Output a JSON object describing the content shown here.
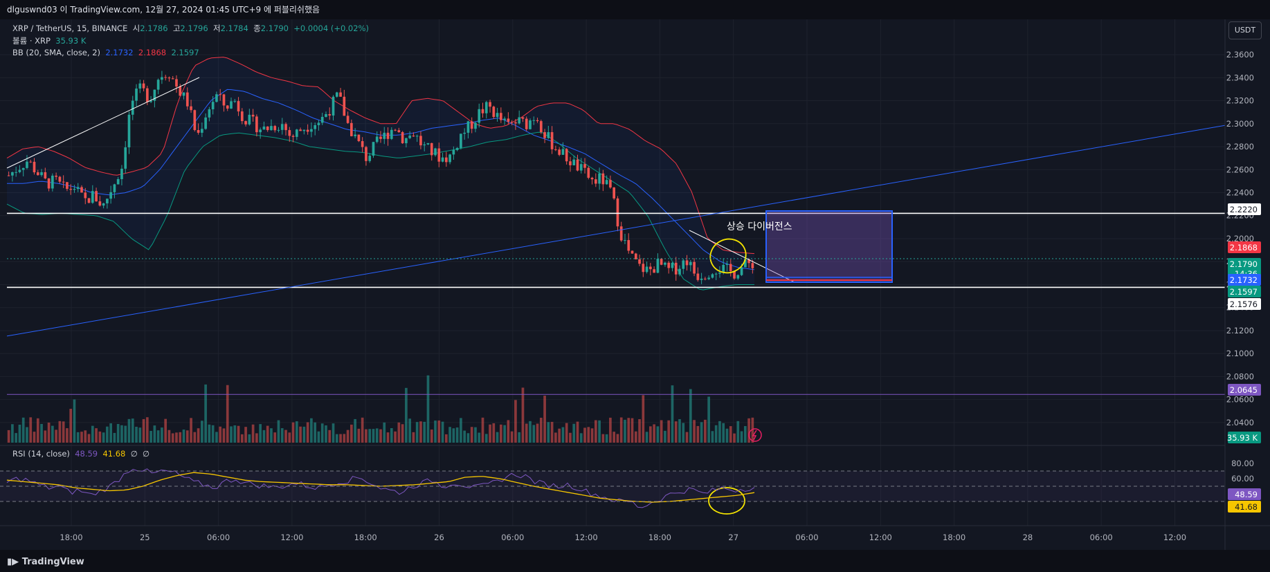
{
  "header": {
    "title": "dlguswnd03 이 TradingView.com, 12월 27, 2024 01:45 UTC+9 에 퍼블리쉬했음"
  },
  "legend": {
    "symbol": "XRP / TetherUS, 15, BINANCE",
    "o_label": "시",
    "o": "2.1786",
    "h_label": "고",
    "h": "2.1796",
    "l_label": "저",
    "l": "2.1784",
    "c_label": "종",
    "c": "2.1790",
    "change": "+0.0004 (+0.02%)",
    "vol_label": "볼륨 · XRP",
    "vol": "35.93 K",
    "bb_label": "BB (20, SMA, close, 2)",
    "bb_basis": "2.1732",
    "bb_upper": "2.1868",
    "bb_lower": "2.1597"
  },
  "rsi_legend": {
    "label": "RSI (14, close)",
    "rsi": "48.59",
    "ma": "41.68",
    "e1": "∅",
    "e2": "∅"
  },
  "currency_button": "USDT",
  "annotation_text": "상승 다이버전스",
  "brand": "TradingView",
  "colors": {
    "background": "#131722",
    "up": "#26a69a",
    "down": "#ef5350",
    "bb_basis": "#2962ff",
    "bb_upper": "#f23645",
    "bb_lower": "#089981",
    "rsi": "#7e57c2",
    "rsi_ma": "#f7c600",
    "trendline": "#2962ff",
    "horizontal": "#ffffff",
    "box": "#2962ff"
  },
  "chart_data": {
    "type": "candlestick",
    "title": "XRP / TetherUS, 15, BINANCE",
    "x_ticks": [
      "18:00",
      "25",
      "06:00",
      "12:00",
      "18:00",
      "26",
      "06:00",
      "12:00",
      "18:00",
      "27",
      "06:00",
      "12:00",
      "18:00",
      "28",
      "06:00",
      "12:00"
    ],
    "y_ticks": [
      2.36,
      2.34,
      2.32,
      2.3,
      2.28,
      2.26,
      2.24,
      2.22,
      2.2,
      2.18,
      2.16,
      2.14,
      2.12,
      2.1,
      2.08,
      2.06,
      2.04
    ],
    "y_range": [
      2.0225,
      2.3835
    ],
    "price_labels": [
      {
        "value": "2.2220",
        "kind": "horizontal-line"
      },
      {
        "value": "2.1868",
        "kind": "bb-upper"
      },
      {
        "value": "2.1790",
        "kind": "last-price",
        "countdown": "14:36"
      },
      {
        "value": "2.1732",
        "kind": "bb-basis"
      },
      {
        "value": "2.1597",
        "kind": "bb-lower"
      },
      {
        "value": "2.1576",
        "kind": "horizontal-line"
      },
      {
        "value": "2.0645",
        "kind": "horizontal-line"
      },
      {
        "value": "35.93 K",
        "kind": "volume"
      }
    ],
    "horizontal_lines": [
      2.222,
      2.1576,
      2.0645
    ],
    "price_path": [
      2.255,
      2.262,
      2.268,
      2.258,
      2.248,
      2.25,
      2.242,
      2.245,
      2.232,
      2.238,
      2.228,
      2.245,
      2.262,
      2.318,
      2.33,
      2.322,
      2.342,
      2.345,
      2.33,
      2.318,
      2.288,
      2.31,
      2.325,
      2.315,
      2.32,
      2.305,
      2.3,
      2.295,
      2.298,
      2.3,
      2.288,
      2.295,
      2.3,
      2.302,
      2.312,
      2.325,
      2.3,
      2.285,
      2.27,
      2.282,
      2.29,
      2.298,
      2.286,
      2.292,
      2.28,
      2.275,
      2.27,
      2.272,
      2.29,
      2.298,
      2.31,
      2.315,
      2.305,
      2.298,
      2.302,
      2.3,
      2.308,
      2.29,
      2.28,
      2.272,
      2.265,
      2.258,
      2.25,
      2.252,
      2.24,
      2.205,
      2.185,
      2.175,
      2.172,
      2.178,
      2.172,
      2.175,
      2.182,
      2.168,
      2.17,
      2.175,
      2.173,
      2.17,
      2.176,
      2.179
    ],
    "bb_upper_path": [
      2.27,
      2.278,
      2.28,
      2.276,
      2.27,
      2.262,
      2.258,
      2.255,
      2.258,
      2.262,
      2.275,
      2.32,
      2.35,
      2.357,
      2.358,
      2.352,
      2.345,
      2.34,
      2.337,
      2.333,
      2.332,
      2.32,
      2.312,
      2.305,
      2.3,
      2.3,
      2.32,
      2.322,
      2.32,
      2.31,
      2.3,
      2.296,
      2.298,
      2.305,
      2.315,
      2.318,
      2.318,
      2.312,
      2.3,
      2.3,
      2.295,
      2.285,
      2.278,
      2.265,
      2.24,
      2.2,
      2.19,
      2.188,
      2.187
    ],
    "bb_basis_path": [
      2.248,
      2.248,
      2.25,
      2.248,
      2.245,
      2.24,
      2.238,
      2.24,
      2.245,
      2.26,
      2.28,
      2.3,
      2.32,
      2.33,
      2.328,
      2.322,
      2.318,
      2.312,
      2.305,
      2.3,
      2.295,
      2.293,
      2.29,
      2.29,
      2.292,
      2.296,
      2.298,
      2.3,
      2.303,
      2.305,
      2.298,
      2.29,
      2.285,
      2.28,
      2.274,
      2.265,
      2.256,
      2.248,
      2.235,
      2.22,
      2.205,
      2.19,
      2.18,
      2.175,
      2.173
    ],
    "bb_lower_path": [
      2.23,
      2.222,
      2.221,
      2.222,
      2.221,
      2.22,
      2.215,
      2.2,
      2.19,
      2.22,
      2.26,
      2.28,
      2.29,
      2.292,
      2.29,
      2.288,
      2.285,
      2.28,
      2.278,
      2.276,
      2.275,
      2.272,
      2.27,
      2.272,
      2.274,
      2.277,
      2.28,
      2.284,
      2.286,
      2.29,
      2.293,
      2.283,
      2.27,
      2.26,
      2.25,
      2.24,
      2.22,
      2.19,
      2.165,
      2.155,
      2.158,
      2.16,
      2.16
    ],
    "trendline_long": {
      "from": 2.1152,
      "to": 2.2985
    },
    "rsi": {
      "y_ticks": [
        80,
        60,
        20
      ],
      "bands": [
        70,
        50,
        30
      ],
      "rsi_last": 48.59,
      "ma_last": 41.68,
      "rsi_path": [
        55,
        60,
        58,
        52,
        48,
        50,
        42,
        45,
        38,
        44,
        50,
        62,
        75,
        72,
        66,
        70,
        68,
        62,
        55,
        52,
        48,
        56,
        60,
        54,
        52,
        50,
        48,
        52,
        54,
        50,
        48,
        52,
        56,
        58,
        62,
        55,
        48,
        44,
        42,
        50,
        54,
        58,
        50,
        55,
        52,
        48,
        50,
        55,
        62,
        66,
        63,
        55,
        52,
        50,
        52,
        48,
        42,
        38,
        34,
        30,
        30,
        22,
        28,
        34,
        40,
        44,
        46,
        40,
        44,
        48,
        45,
        47,
        49
      ],
      "ma_path": [
        58,
        56,
        54,
        52,
        48,
        46,
        44,
        45,
        50,
        58,
        64,
        68,
        66,
        62,
        58,
        56,
        55,
        54,
        53,
        52,
        52,
        51,
        50,
        51,
        52,
        54,
        56,
        62,
        63,
        60,
        55,
        50,
        46,
        42,
        38,
        34,
        32,
        30,
        29,
        30,
        32,
        34,
        36,
        38,
        41.68
      ]
    }
  }
}
